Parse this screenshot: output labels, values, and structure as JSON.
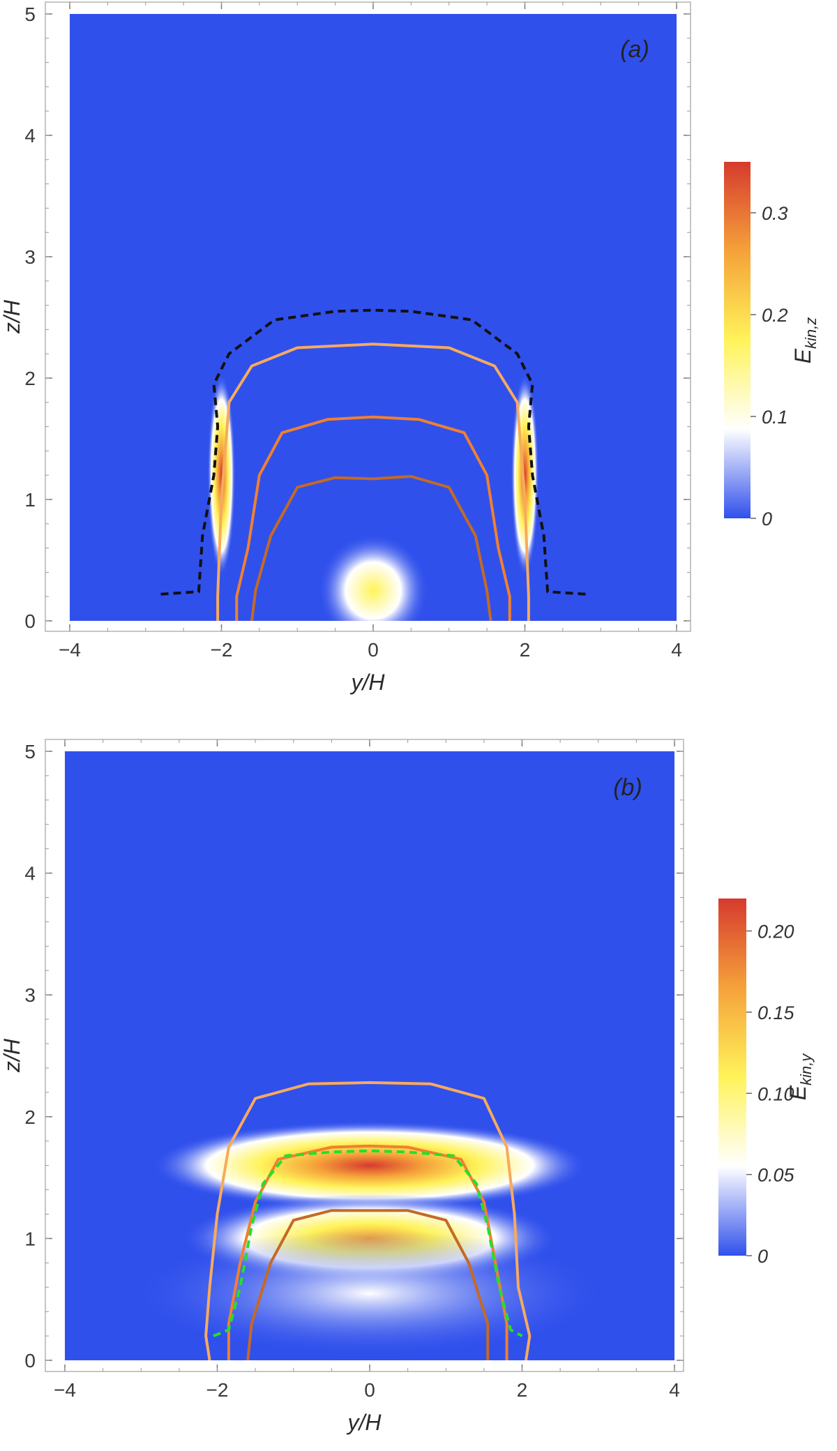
{
  "colorscale": [
    "#3050ec",
    "#ffffff",
    "#fff35a",
    "#f5a23a",
    "#d63a2e"
  ],
  "contour_colors": {
    "outer": "#f7aa5e",
    "middle": "#f08030",
    "inner": "#c46a24",
    "black_dashed": "#111111",
    "green_dashed": "#22e02a"
  },
  "chart_data": [
    {
      "type": "heatmap",
      "panel_label": "(a)",
      "xlabel": "y/H",
      "ylabel": "z/H",
      "xlim": [
        -4,
        4
      ],
      "ylim": [
        0,
        5
      ],
      "x_ticks": [
        -4,
        -2,
        0,
        2,
        4
      ],
      "y_ticks": [
        0,
        1,
        2,
        3,
        4,
        5
      ],
      "x_tick_labels": [
        "−4",
        "−2",
        "0",
        "2",
        "4"
      ],
      "y_tick_labels": [
        "0",
        "1",
        "2",
        "3",
        "4",
        "5"
      ],
      "colorbar": {
        "label": "E",
        "label_sub": "kin,z",
        "range": [
          0,
          0.35
        ],
        "ticks": [
          0,
          0.1,
          0.2,
          0.3
        ],
        "tick_labels": [
          "0",
          "0.1",
          "0.2",
          "0.3"
        ]
      },
      "features": [
        {
          "x": -2.0,
          "z": 1.2,
          "peak": 0.35,
          "sx": 0.07,
          "sz": 0.32
        },
        {
          "x": 2.0,
          "z": 1.2,
          "peak": 0.35,
          "sx": 0.07,
          "sz": 0.32
        },
        {
          "x": 0.0,
          "z": 0.25,
          "peak": 0.2,
          "sx": 0.28,
          "sz": 0.18
        }
      ],
      "contours": [
        {
          "name": "outer",
          "points": [
            [
              -2.05,
              0
            ],
            [
              -2.05,
              0.2
            ],
            [
              -2.0,
              1.0
            ],
            [
              -1.9,
              1.8
            ],
            [
              -1.6,
              2.1
            ],
            [
              -1.0,
              2.25
            ],
            [
              0,
              2.28
            ],
            [
              1.0,
              2.25
            ],
            [
              1.6,
              2.1
            ],
            [
              1.9,
              1.8
            ],
            [
              2.0,
              1.0
            ],
            [
              2.05,
              0.2
            ],
            [
              2.05,
              0
            ]
          ]
        },
        {
          "name": "middle",
          "points": [
            [
              -1.8,
              0
            ],
            [
              -1.8,
              0.2
            ],
            [
              -1.65,
              0.6
            ],
            [
              -1.5,
              1.2
            ],
            [
              -1.2,
              1.55
            ],
            [
              -0.6,
              1.66
            ],
            [
              0,
              1.68
            ],
            [
              0.6,
              1.66
            ],
            [
              1.2,
              1.55
            ],
            [
              1.5,
              1.2
            ],
            [
              1.65,
              0.6
            ],
            [
              1.8,
              0.2
            ],
            [
              1.8,
              0
            ]
          ]
        },
        {
          "name": "inner",
          "points": [
            [
              -1.6,
              0
            ],
            [
              -1.55,
              0.25
            ],
            [
              -1.35,
              0.7
            ],
            [
              -1.0,
              1.1
            ],
            [
              -0.5,
              1.18
            ],
            [
              0,
              1.17
            ],
            [
              0.5,
              1.19
            ],
            [
              1.0,
              1.1
            ],
            [
              1.35,
              0.7
            ],
            [
              1.5,
              0.25
            ],
            [
              1.55,
              0
            ]
          ]
        }
      ],
      "dashed_contour": {
        "name": "black_dashed",
        "points": [
          [
            -2.8,
            0.22
          ],
          [
            -2.3,
            0.24
          ],
          [
            -2.25,
            0.7
          ],
          [
            -2.1,
            1.2
          ],
          [
            -2.05,
            1.6
          ],
          [
            -2.1,
            1.95
          ],
          [
            -1.9,
            2.2
          ],
          [
            -1.3,
            2.48
          ],
          [
            -0.5,
            2.55
          ],
          [
            0,
            2.56
          ],
          [
            0.5,
            2.55
          ],
          [
            1.3,
            2.48
          ],
          [
            1.9,
            2.2
          ],
          [
            2.1,
            1.95
          ],
          [
            2.05,
            1.6
          ],
          [
            2.1,
            1.2
          ],
          [
            2.25,
            0.7
          ],
          [
            2.3,
            0.24
          ],
          [
            2.8,
            0.22
          ]
        ]
      }
    },
    {
      "type": "heatmap",
      "panel_label": "(b)",
      "xlabel": "y/H",
      "ylabel": "z/H",
      "xlim": [
        -4,
        4
      ],
      "ylim": [
        0,
        5
      ],
      "x_ticks": [
        -4,
        -2,
        0,
        2,
        4
      ],
      "y_ticks": [
        0,
        1,
        2,
        3,
        4,
        5
      ],
      "x_tick_labels": [
        "−4",
        "−2",
        "0",
        "2",
        "4"
      ],
      "y_tick_labels": [
        "0",
        "1",
        "2",
        "3",
        "4",
        "5"
      ],
      "colorbar": {
        "label": "E",
        "label_sub": "kin,y",
        "range": [
          0,
          0.22
        ],
        "ticks": [
          0,
          0.05,
          0.1,
          0.15,
          0.2
        ],
        "tick_labels": [
          "0",
          "0.05",
          "0.10",
          "0.15",
          "0.20"
        ]
      },
      "features": [
        {
          "x": 0.0,
          "z": 1.6,
          "peak": 0.22,
          "sx": 1.1,
          "sz": 0.14
        },
        {
          "x": 0.0,
          "z": 1.0,
          "peak": 0.16,
          "sx": 0.95,
          "sz": 0.14
        },
        {
          "x": 0.0,
          "z": 0.55,
          "peak": 0.07,
          "sx": 1.2,
          "sz": 0.2
        }
      ],
      "contours": [
        {
          "name": "outer",
          "points": [
            [
              -2.1,
              0
            ],
            [
              -2.15,
              0.2
            ],
            [
              -2.1,
              0.6
            ],
            [
              -2.0,
              1.2
            ],
            [
              -1.85,
              1.75
            ],
            [
              -1.5,
              2.15
            ],
            [
              -0.8,
              2.27
            ],
            [
              0,
              2.28
            ],
            [
              0.8,
              2.27
            ],
            [
              1.5,
              2.15
            ],
            [
              1.8,
              1.75
            ],
            [
              1.9,
              1.2
            ],
            [
              1.95,
              0.6
            ],
            [
              2.1,
              0.2
            ],
            [
              2.05,
              0
            ]
          ]
        },
        {
          "name": "middle",
          "points": [
            [
              -1.85,
              0
            ],
            [
              -1.85,
              0.3
            ],
            [
              -1.7,
              0.8
            ],
            [
              -1.5,
              1.3
            ],
            [
              -1.2,
              1.65
            ],
            [
              -0.5,
              1.75
            ],
            [
              0,
              1.76
            ],
            [
              0.5,
              1.75
            ],
            [
              1.2,
              1.65
            ],
            [
              1.5,
              1.3
            ],
            [
              1.65,
              0.8
            ],
            [
              1.8,
              0.3
            ],
            [
              1.8,
              0
            ]
          ]
        },
        {
          "name": "inner",
          "points": [
            [
              -1.6,
              0
            ],
            [
              -1.55,
              0.3
            ],
            [
              -1.3,
              0.8
            ],
            [
              -1.0,
              1.15
            ],
            [
              -0.5,
              1.23
            ],
            [
              0,
              1.23
            ],
            [
              0.5,
              1.23
            ],
            [
              1.0,
              1.15
            ],
            [
              1.3,
              0.8
            ],
            [
              1.55,
              0.3
            ],
            [
              1.55,
              0
            ]
          ]
        }
      ],
      "dashed_contour": {
        "name": "green_dashed",
        "points": [
          [
            -2.05,
            0.2
          ],
          [
            -1.85,
            0.25
          ],
          [
            -1.7,
            0.6
          ],
          [
            -1.55,
            1.1
          ],
          [
            -1.4,
            1.45
          ],
          [
            -1.1,
            1.68
          ],
          [
            -0.5,
            1.71
          ],
          [
            0,
            1.72
          ],
          [
            0.5,
            1.71
          ],
          [
            1.1,
            1.68
          ],
          [
            1.4,
            1.45
          ],
          [
            1.55,
            1.1
          ],
          [
            1.7,
            0.6
          ],
          [
            1.85,
            0.25
          ],
          [
            2.0,
            0.2
          ]
        ]
      }
    }
  ]
}
